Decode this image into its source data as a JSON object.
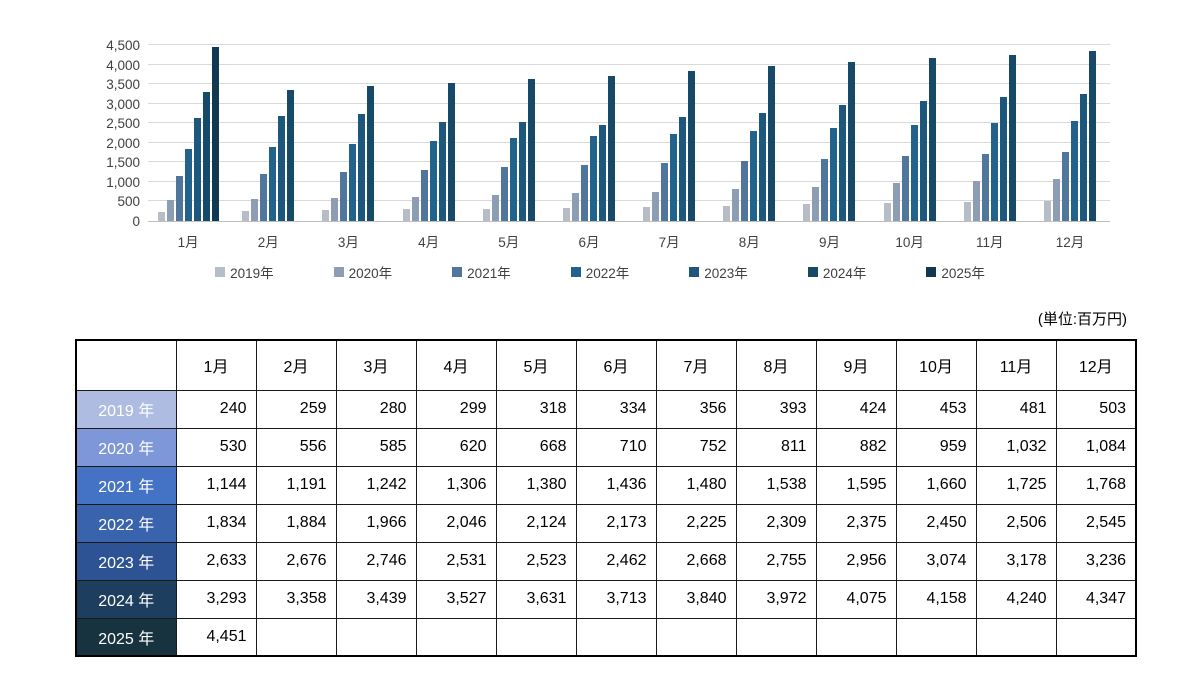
{
  "chart": {
    "y_axis": {
      "min": 0,
      "max": 4500,
      "step": 500,
      "tick_labels": [
        "0",
        "500",
        "1,000",
        "1,500",
        "2,000",
        "2,500",
        "3,000",
        "3,500",
        "4,000",
        "4,500"
      ]
    }
  },
  "chart_data": {
    "type": "bar",
    "title": "",
    "xlabel": "",
    "ylabel": "",
    "ylim": [
      0,
      4500
    ],
    "grid": true,
    "legend_position": "bottom",
    "categories": [
      "1月",
      "2月",
      "3月",
      "4月",
      "5月",
      "6月",
      "7月",
      "8月",
      "9月",
      "10月",
      "11月",
      "12月"
    ],
    "series": [
      {
        "name": "2019年",
        "color": "#b7bdc7",
        "values": [
          240,
          259,
          280,
          299,
          318,
          334,
          356,
          393,
          424,
          453,
          481,
          503
        ]
      },
      {
        "name": "2020年",
        "color": "#8d9db3",
        "values": [
          530,
          556,
          585,
          620,
          668,
          710,
          752,
          811,
          882,
          959,
          1032,
          1084
        ]
      },
      {
        "name": "2021年",
        "color": "#51769b",
        "values": [
          1144,
          1191,
          1242,
          1306,
          1380,
          1436,
          1480,
          1538,
          1595,
          1660,
          1725,
          1768
        ]
      },
      {
        "name": "2022年",
        "color": "#23628a",
        "values": [
          1834,
          1884,
          1966,
          2046,
          2124,
          2173,
          2225,
          2309,
          2375,
          2450,
          2506,
          2545
        ]
      },
      {
        "name": "2023年",
        "color": "#1d587c",
        "values": [
          2633,
          2676,
          2746,
          2531,
          2523,
          2462,
          2668,
          2755,
          2956,
          3074,
          3178,
          3236
        ]
      },
      {
        "name": "2024年",
        "color": "#174a68",
        "values": [
          3293,
          3358,
          3439,
          3527,
          3631,
          3713,
          3840,
          3972,
          4075,
          4158,
          4240,
          4347
        ]
      },
      {
        "name": "2025年",
        "color": "#0f3a52",
        "values": [
          4451,
          null,
          null,
          null,
          null,
          null,
          null,
          null,
          null,
          null,
          null,
          null
        ]
      }
    ]
  },
  "table": {
    "unit_label": "(単位:百万円)",
    "corner_label": "",
    "columns": [
      "1月",
      "2月",
      "3月",
      "4月",
      "5月",
      "6月",
      "7月",
      "8月",
      "9月",
      "10月",
      "11月",
      "12月"
    ],
    "rows": [
      {
        "label": "2019 年",
        "header_color": "#aebce2",
        "values": [
          "240",
          "259",
          "280",
          "299",
          "318",
          "334",
          "356",
          "393",
          "424",
          "453",
          "481",
          "503"
        ]
      },
      {
        "label": "2020 年",
        "header_color": "#7d97d8",
        "values": [
          "530",
          "556",
          "585",
          "620",
          "668",
          "710",
          "752",
          "811",
          "882",
          "959",
          "1,032",
          "1,084"
        ]
      },
      {
        "label": "2021 年",
        "header_color": "#4472c4",
        "values": [
          "1,144",
          "1,191",
          "1,242",
          "1,306",
          "1,380",
          "1,436",
          "1,480",
          "1,538",
          "1,595",
          "1,660",
          "1,725",
          "1,768"
        ]
      },
      {
        "label": "2022 年",
        "header_color": "#3a63ae",
        "values": [
          "1,834",
          "1,884",
          "1,966",
          "2,046",
          "2,124",
          "2,173",
          "2,225",
          "2,309",
          "2,375",
          "2,450",
          "2,506",
          "2,545"
        ]
      },
      {
        "label": "2023 年",
        "header_color": "#2e5394",
        "values": [
          "2,633",
          "2,676",
          "2,746",
          "2,531",
          "2,523",
          "2,462",
          "2,668",
          "2,755",
          "2,956",
          "3,074",
          "3,178",
          "3,236"
        ]
      },
      {
        "label": "2024 年",
        "header_color": "#1e3e60",
        "values": [
          "3,293",
          "3,358",
          "3,439",
          "3,527",
          "3,631",
          "3,713",
          "3,840",
          "3,972",
          "4,075",
          "4,158",
          "4,240",
          "4,347"
        ]
      },
      {
        "label": "2025 年",
        "header_color": "#17333f",
        "values": [
          "4,451",
          "",
          "",
          "",
          "",
          "",
          "",
          "",
          "",
          "",
          "",
          ""
        ]
      }
    ]
  }
}
